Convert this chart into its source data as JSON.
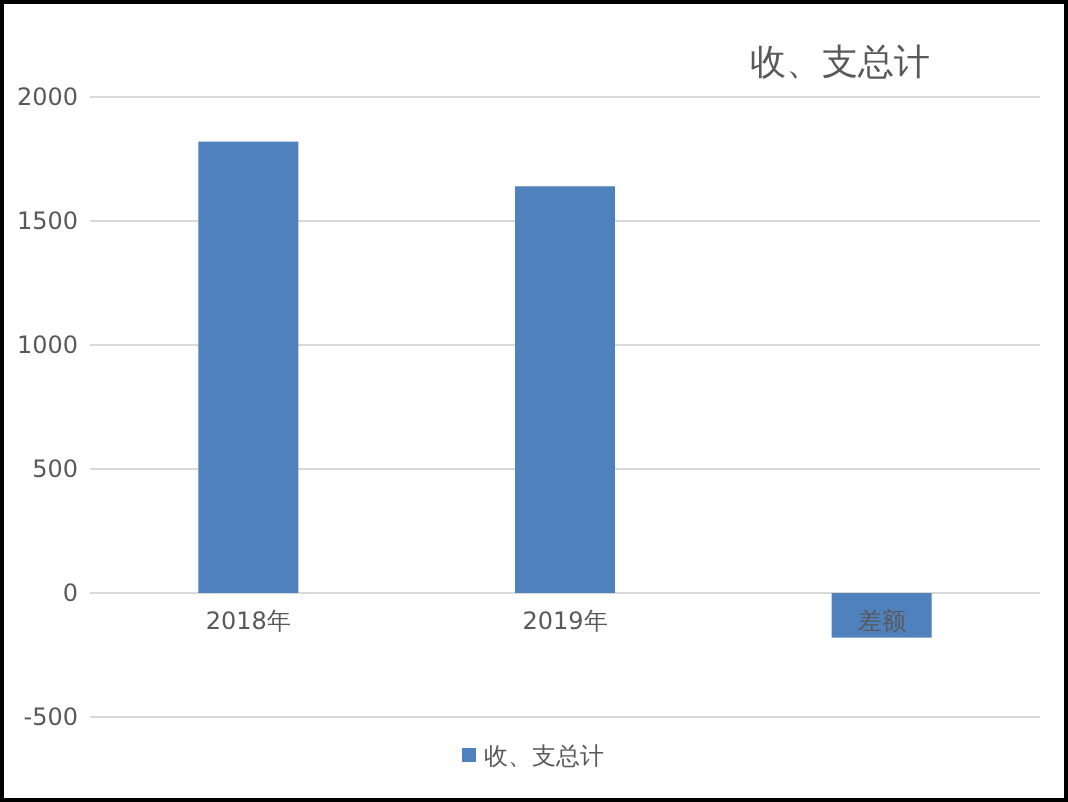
{
  "chart_data": {
    "type": "bar",
    "title": "收、支总计",
    "categories": [
      "2018年",
      "2019年",
      "差额"
    ],
    "series": [
      {
        "name": "收、支总计",
        "color": "#4f81bd",
        "values": [
          1820,
          1640,
          -180
        ]
      }
    ],
    "ylim": [
      -500,
      2000
    ],
    "yticks": [
      -500,
      0,
      500,
      1000,
      1500,
      2000
    ],
    "grid": "y",
    "legend": "bottom"
  }
}
